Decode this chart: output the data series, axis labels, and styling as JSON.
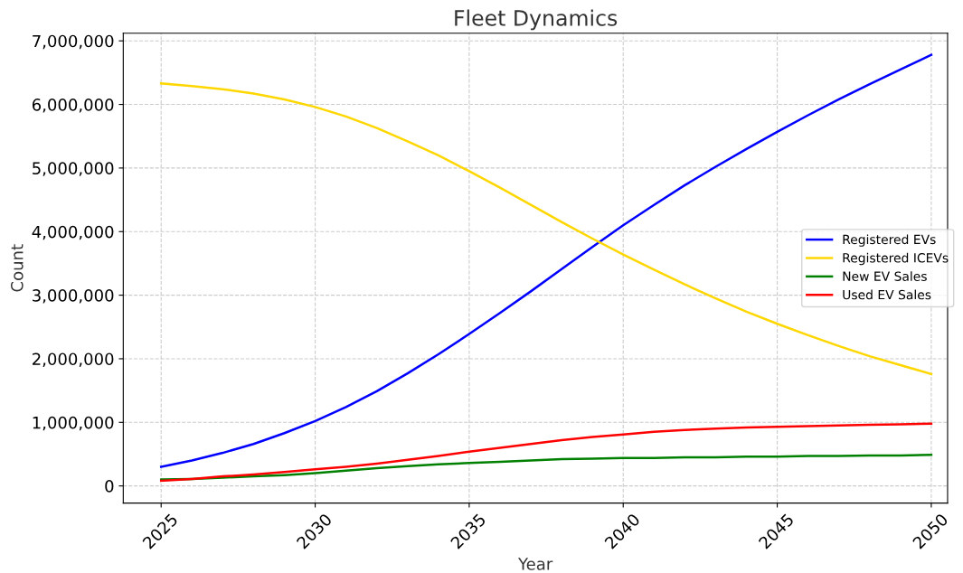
{
  "chart_data": {
    "type": "line",
    "title": "Fleet Dynamics",
    "xlabel": "Year",
    "ylabel": "Count",
    "x": [
      2025,
      2026,
      2027,
      2028,
      2029,
      2030,
      2031,
      2032,
      2033,
      2034,
      2035,
      2036,
      2037,
      2038,
      2039,
      2040,
      2041,
      2042,
      2043,
      2044,
      2045,
      2046,
      2047,
      2048,
      2049,
      2050
    ],
    "series": [
      {
        "name": "Registered EVs",
        "color": "#0000ff",
        "values": [
          300000,
          400000,
          520000,
          660000,
          830000,
          1020000,
          1240000,
          1490000,
          1770000,
          2070000,
          2390000,
          2720000,
          3060000,
          3410000,
          3760000,
          4100000,
          4420000,
          4730000,
          5020000,
          5300000,
          5570000,
          5830000,
          6080000,
          6320000,
          6550000,
          6780000
        ]
      },
      {
        "name": "Registered ICEVs",
        "color": "#ffd700",
        "values": [
          6330000,
          6290000,
          6240000,
          6170000,
          6080000,
          5960000,
          5810000,
          5630000,
          5420000,
          5200000,
          4950000,
          4690000,
          4420000,
          4150000,
          3890000,
          3640000,
          3400000,
          3170000,
          2950000,
          2740000,
          2550000,
          2370000,
          2200000,
          2040000,
          1900000,
          1760000
        ]
      },
      {
        "name": "New EV Sales",
        "color": "#008000",
        "values": [
          100000,
          110000,
          130000,
          150000,
          170000,
          200000,
          240000,
          280000,
          310000,
          340000,
          360000,
          380000,
          400000,
          420000,
          430000,
          440000,
          440000,
          450000,
          450000,
          460000,
          460000,
          470000,
          470000,
          480000,
          480000,
          490000
        ]
      },
      {
        "name": "Used EV Sales",
        "color": "#ff0000",
        "values": [
          80000,
          110000,
          150000,
          180000,
          220000,
          260000,
          300000,
          350000,
          410000,
          470000,
          540000,
          600000,
          660000,
          720000,
          770000,
          810000,
          850000,
          880000,
          900000,
          920000,
          930000,
          940000,
          950000,
          960000,
          970000,
          980000
        ]
      }
    ],
    "xlim": [
      2023.77,
      2050.53
    ],
    "xticks": [
      2025,
      2030,
      2035,
      2040,
      2045,
      2050
    ],
    "ylim": [
      -270000,
      7120000
    ],
    "yticks": [
      0,
      {
        "value": 1000000,
        "label": "1,000,000"
      },
      {
        "value": 2000000,
        "label": "2,000,000"
      },
      {
        "value": 3000000,
        "label": "3,000,000"
      },
      {
        "value": 4000000,
        "label": "4,000,000"
      },
      {
        "value": 5000000,
        "label": "5,000,000"
      },
      {
        "value": 6000000,
        "label": "6,000,000"
      },
      {
        "value": 7000000,
        "label": "7,000,000"
      }
    ],
    "grid": true,
    "legend": "right",
    "line_style": "solid",
    "marker": "none"
  }
}
